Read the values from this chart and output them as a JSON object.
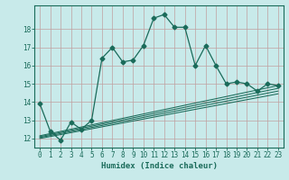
{
  "xlabel": "Humidex (Indice chaleur)",
  "bg_color": "#c8eaea",
  "grid_color": "#b0d8d8",
  "line_color": "#1a6b5a",
  "spine_color": "#1a6b5a",
  "xlim": [
    -0.5,
    23.5
  ],
  "ylim": [
    11.5,
    19.3
  ],
  "yticks": [
    12,
    13,
    14,
    15,
    16,
    17,
    18
  ],
  "xticks": [
    0,
    1,
    2,
    3,
    4,
    5,
    6,
    7,
    8,
    9,
    10,
    11,
    12,
    13,
    14,
    15,
    16,
    17,
    18,
    19,
    20,
    21,
    22,
    23
  ],
  "main_x": [
    0,
    1,
    2,
    3,
    4,
    5,
    6,
    7,
    8,
    9,
    10,
    11,
    12,
    13,
    14,
    15,
    16,
    17,
    18,
    19,
    20,
    21,
    22,
    23
  ],
  "main_y": [
    13.9,
    12.4,
    11.9,
    12.9,
    12.5,
    13.0,
    16.4,
    17.0,
    16.2,
    16.3,
    17.1,
    18.6,
    18.8,
    18.1,
    18.1,
    16.0,
    17.1,
    16.0,
    15.0,
    15.1,
    15.0,
    14.6,
    15.0,
    14.9
  ],
  "straight_lines": [
    {
      "x": [
        0,
        23
      ],
      "y": [
        12.0,
        14.45
      ]
    },
    {
      "x": [
        0,
        23
      ],
      "y": [
        12.05,
        14.6
      ]
    },
    {
      "x": [
        0,
        23
      ],
      "y": [
        12.1,
        14.75
      ]
    },
    {
      "x": [
        0,
        23
      ],
      "y": [
        12.15,
        14.9
      ]
    }
  ],
  "xlabel_fontsize": 6.5,
  "tick_fontsize": 5.5
}
